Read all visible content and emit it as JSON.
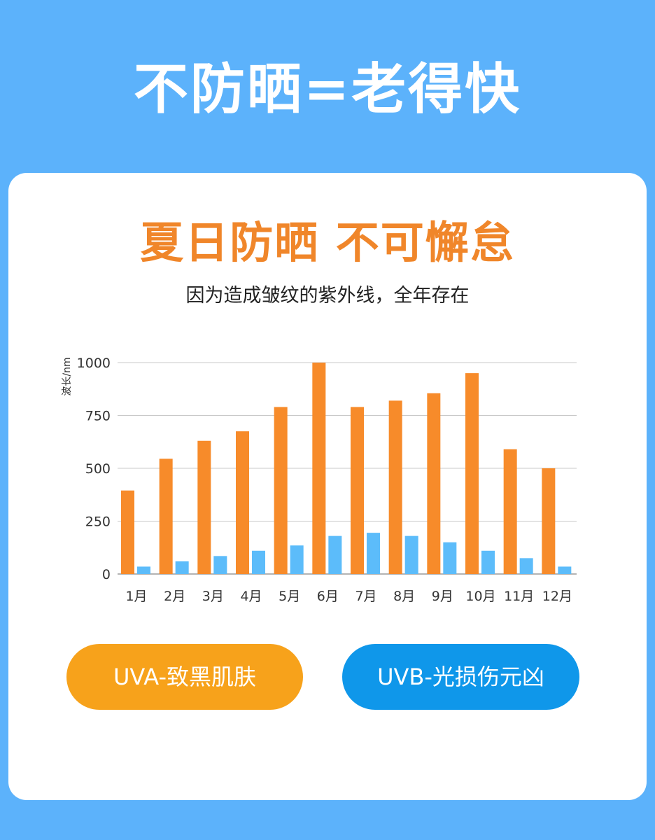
{
  "header": {
    "title": "不防晒=老得快"
  },
  "card": {
    "title": "夏日防晒 不可懈怠",
    "subtitle": "因为造成皱纹的紫外线，全年存在"
  },
  "buttons": {
    "uva_label": "UVA-致黑肌肤",
    "uvb_label": "UVB-光损伤元凶"
  },
  "colors": {
    "background": "#5cb2fb",
    "uva": "#f78b2a",
    "uvb": "#5cbcfa",
    "title_accent": "#f0862a",
    "uva_pill": "#f7a21b",
    "uvb_pill": "#0f97ea"
  },
  "chart_data": {
    "type": "bar",
    "title": "",
    "xlabel": "",
    "ylabel": "波长/nm",
    "ylim": [
      0,
      1000
    ],
    "yticks": [
      0,
      250,
      500,
      750,
      1000
    ],
    "grid": true,
    "categories": [
      "1月",
      "2月",
      "3月",
      "4月",
      "5月",
      "6月",
      "7月",
      "8月",
      "9月",
      "10月",
      "11月",
      "12月"
    ],
    "series": [
      {
        "values": [
          395,
          545,
          630,
          675,
          790,
          1000,
          790,
          820,
          855,
          950,
          590,
          500
        ]
      },
      {
        "values": [
          35,
          60,
          85,
          110,
          135,
          180,
          195,
          180,
          150,
          110,
          75,
          35
        ]
      }
    ]
  }
}
